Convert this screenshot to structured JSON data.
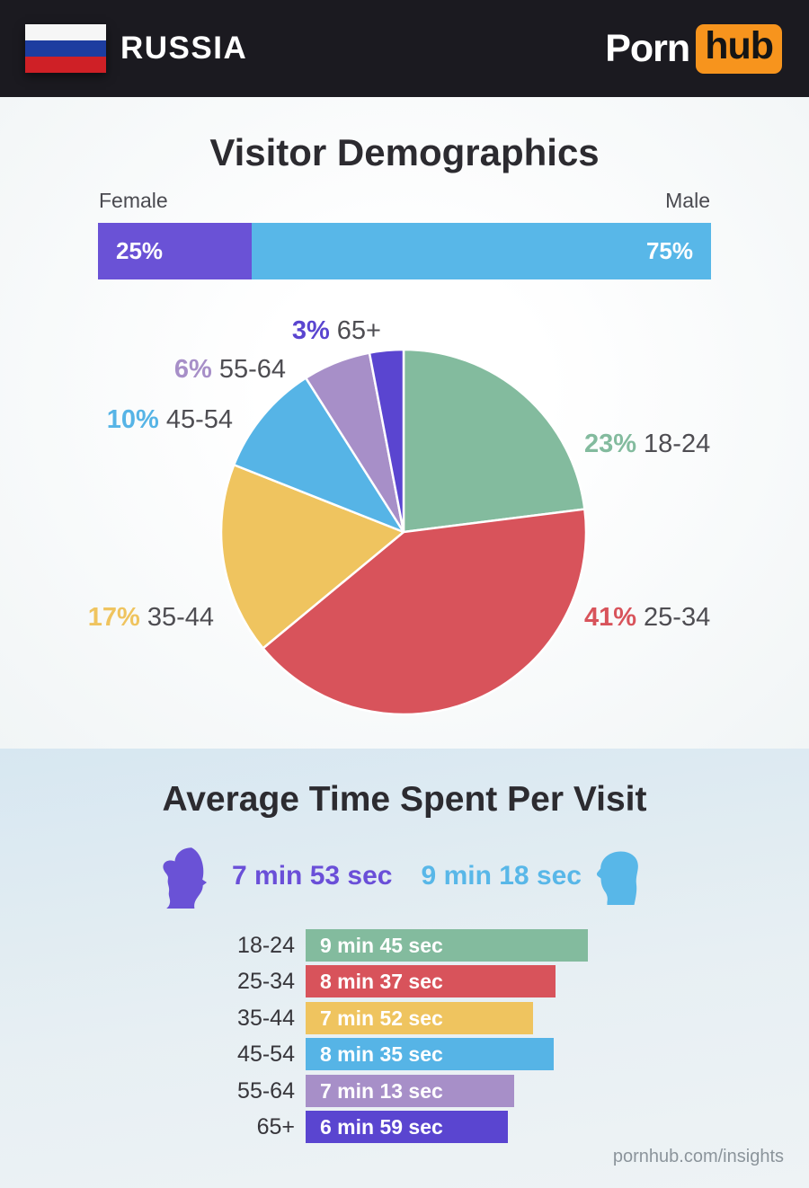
{
  "header": {
    "country": "RUSSIA",
    "flag": "russia-flag",
    "brand": {
      "part1": "Porn",
      "part2": "hub",
      "accent_color": "#f7941d"
    }
  },
  "demographics": {
    "title": "Visitor Demographics",
    "gender_chart": {
      "female_label": "Female",
      "male_label": "Male",
      "female_value": "25%",
      "male_value": "75%",
      "female_pct": 25,
      "male_pct": 75,
      "female_color": "#6a52d6",
      "male_color": "#58b7e8"
    },
    "age_pie": {
      "slices": [
        {
          "value": 23,
          "display": "23%",
          "label": "18-24",
          "color": "#83bb9e"
        },
        {
          "value": 41,
          "display": "41%",
          "label": "25-34",
          "color": "#d8535b"
        },
        {
          "value": 17,
          "display": "17%",
          "label": "35-44",
          "color": "#efc45f"
        },
        {
          "value": 10,
          "display": "10%",
          "label": "45-54",
          "color": "#56b4e6"
        },
        {
          "value": 6,
          "display": "6%",
          "label": "55-64",
          "color": "#a78fc8"
        },
        {
          "value": 3,
          "display": "3%",
          "label": "65+",
          "color": "#5a45d0"
        }
      ]
    }
  },
  "time_section": {
    "title": "Average Time Spent Per Visit",
    "female_time": "7 min 53 sec",
    "male_time": "9 min 18 sec",
    "rows": [
      {
        "age": "18-24",
        "time": "9 min 45 sec",
        "seconds": 585,
        "color": "#83bb9e"
      },
      {
        "age": "25-34",
        "time": "8 min 37 sec",
        "seconds": 517,
        "color": "#d8535b"
      },
      {
        "age": "35-44",
        "time": "7 min 52 sec",
        "seconds": 472,
        "color": "#efc45f"
      },
      {
        "age": "45-54",
        "time": "8 min 35 sec",
        "seconds": 515,
        "color": "#56b4e6"
      },
      {
        "age": "55-64",
        "time": "7 min 13 sec",
        "seconds": 433,
        "color": "#a78fc8"
      },
      {
        "age": "65+",
        "time": "6 min 59 sec",
        "seconds": 419,
        "color": "#5a45d0"
      }
    ]
  },
  "footer": {
    "url": "pornhub.com/insights"
  },
  "chart_data": [
    {
      "type": "bar",
      "title": "Visitor Demographics - gender split",
      "categories": [
        "Female",
        "Male"
      ],
      "values": [
        25,
        75
      ],
      "unit": "percent",
      "colors": [
        "#6a52d6",
        "#58b7e8"
      ],
      "layout": "single stacked horizontal bar, labels inside segments"
    },
    {
      "type": "pie",
      "title": "Visitor Demographics - age distribution",
      "categories": [
        "18-24",
        "25-34",
        "35-44",
        "45-54",
        "55-64",
        "65+"
      ],
      "values": [
        23,
        41,
        17,
        10,
        6,
        3
      ],
      "unit": "percent",
      "colors": [
        "#83bb9e",
        "#d8535b",
        "#efc45f",
        "#56b4e6",
        "#a78fc8",
        "#5a45d0"
      ],
      "layout": "starts at 12 o'clock, clockwise, external labels"
    },
    {
      "type": "bar",
      "title": "Average Time Spent Per Visit",
      "orientation": "horizontal",
      "categories": [
        "Female overall",
        "Male overall",
        "18-24",
        "25-34",
        "35-44",
        "45-54",
        "55-64",
        "65+"
      ],
      "values": [
        473,
        558,
        585,
        517,
        472,
        515,
        433,
        419
      ],
      "unit": "seconds",
      "labels": [
        "7 min 53 sec",
        "9 min 18 sec",
        "9 min 45 sec",
        "8 min 37 sec",
        "7 min 52 sec",
        "8 min 35 sec",
        "7 min 13 sec",
        "6 min 59 sec"
      ],
      "xlim": [
        0,
        585
      ]
    }
  ]
}
